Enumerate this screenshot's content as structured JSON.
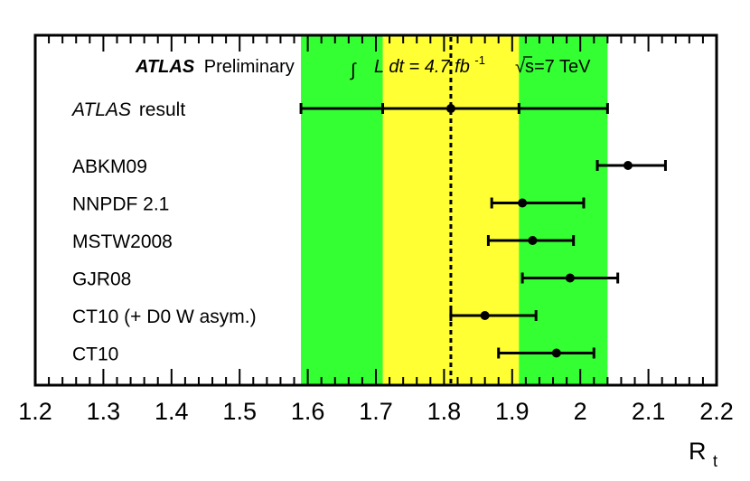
{
  "header": {
    "experiment": "ATLAS",
    "status": "Preliminary",
    "lumi_prefix": "L dt = 4.7 fb",
    "lumi_exp": "-1",
    "energy": "s=7 TeV"
  },
  "chart_data": {
    "type": "scatter",
    "orientation": "horizontal-errorbars",
    "xlabel": "R",
    "xlabel_subscript": "t",
    "xlim": [
      1.2,
      2.2
    ],
    "xticks": [
      "1.2",
      "1.3",
      "1.4",
      "1.5",
      "1.6",
      "1.7",
      "1.8",
      "1.9",
      "2",
      "2.1",
      "2.2"
    ],
    "measurement": {
      "label": "ATLAS",
      "label_suffix": "result",
      "value": 1.81,
      "stat_err_low": 1.71,
      "stat_err_high": 1.91,
      "total_err_low": 1.59,
      "total_err_high": 2.04,
      "band_colors": {
        "inner": "#ffff33",
        "outer": "#33ff33"
      }
    },
    "predictions": [
      {
        "label": "ABKM09",
        "value": 2.07,
        "low": 2.025,
        "high": 2.125
      },
      {
        "label": "NNPDF 2.1",
        "value": 1.915,
        "low": 1.87,
        "high": 2.005
      },
      {
        "label": "MSTW2008",
        "value": 1.93,
        "low": 1.865,
        "high": 1.99
      },
      {
        "label": "GJR08",
        "value": 1.985,
        "low": 1.915,
        "high": 2.055
      },
      {
        "label": "CT10 (+ D0 W asym.)",
        "value": 1.86,
        "low": 1.81,
        "high": 1.935
      },
      {
        "label": "CT10",
        "value": 1.965,
        "low": 1.88,
        "high": 2.02
      }
    ]
  }
}
